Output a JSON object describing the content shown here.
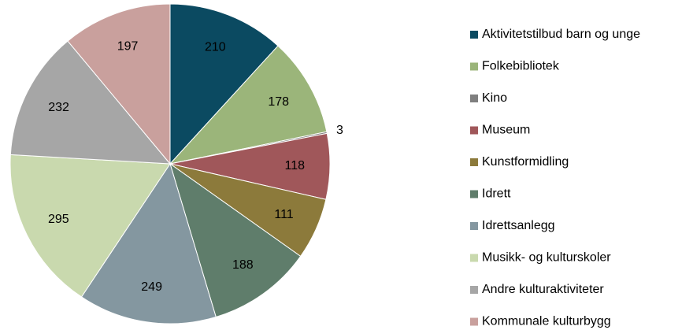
{
  "chart_data": {
    "type": "pie",
    "categories": [
      "Aktivitetstilbud barn og unge",
      "Folkebibliotek",
      "Kino",
      "Museum",
      "Kunstformidling",
      "Idrett",
      "Idrettsanlegg",
      "Musikk- og kulturskoler",
      "Andre kulturaktiviteter",
      "Kommunale kulturbygg"
    ],
    "values": [
      210,
      178,
      3,
      118,
      111,
      188,
      249,
      295,
      232,
      197
    ],
    "colors": [
      "#0b4a61",
      "#9bb57a",
      "#7f7f7f",
      "#a0575a",
      "#8c7a3b",
      "#5f7d6b",
      "#8497a0",
      "#c9d9ae",
      "#a6a6a6",
      "#c9a09d"
    ],
    "legend": "right"
  }
}
